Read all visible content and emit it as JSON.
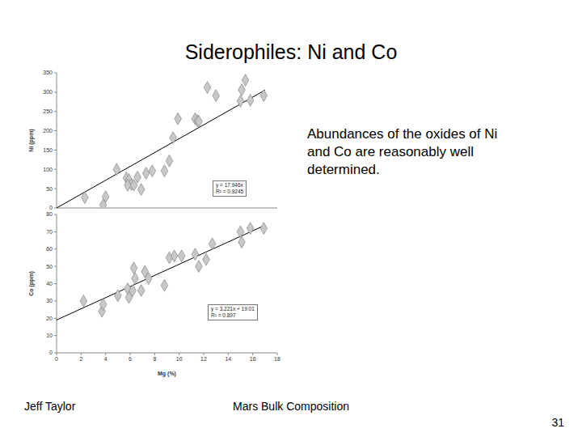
{
  "slide": {
    "title": "Siderophiles: Ni and Co",
    "text": "Abundances of the oxides of Ni and Co are reasonably well determined.",
    "footer_left": "Jeff Taylor",
    "footer_center": "Mars Bulk Composition",
    "page_number": 31
  },
  "chart_data": [
    {
      "type": "scatter",
      "y_label": "Ni (ppm)",
      "xlim": [
        0,
        18
      ],
      "xticks": [
        0,
        2,
        4,
        6,
        8,
        10,
        12,
        14,
        16,
        18
      ],
      "ylim": [
        0,
        350
      ],
      "yticks": [
        0,
        50,
        100,
        150,
        200,
        250,
        300,
        350
      ],
      "tick_labels": "y",
      "grid": false,
      "color": "#c8c8c8",
      "marker": "diamond",
      "x": [
        2.3,
        4.0,
        3.8,
        4.9,
        5.7,
        5.9,
        6.1,
        5.8,
        6.3,
        6.6,
        6.9,
        7.3,
        7.8,
        8.8,
        9.2,
        9.5,
        9.9,
        11.3,
        11.5,
        11.6,
        12.3,
        13.0,
        15.0,
        15.1,
        15.4,
        15.8,
        16.9
      ],
      "values": [
        27,
        29,
        8,
        100,
        78,
        73,
        61,
        59,
        59,
        80,
        48,
        90,
        96,
        96,
        122,
        182,
        231,
        231,
        226,
        224,
        312,
        291,
        277,
        306,
        331,
        279,
        291
      ],
      "trendline": {
        "x": [
          0,
          17
        ],
        "values": [
          0,
          305.1
        ],
        "label": [
          "y = 17.946x",
          "R² = 0.9245"
        ]
      }
    },
    {
      "type": "scatter",
      "x_label": "Mg (%)",
      "y_label": "Co (ppm)",
      "xlim": [
        0,
        18
      ],
      "xticks": [
        0,
        2,
        4,
        6,
        8,
        10,
        12,
        14,
        16,
        18
      ],
      "ylim": [
        0,
        80
      ],
      "yticks": [
        0,
        10,
        20,
        30,
        40,
        50,
        60,
        70,
        80
      ],
      "grid": false,
      "color": "#c8c8c8",
      "marker": "diamond",
      "x": [
        2.2,
        3.7,
        3.8,
        5.0,
        5.8,
        5.9,
        6.2,
        6.3,
        6.4,
        6.9,
        7.2,
        7.5,
        8.8,
        9.2,
        9.6,
        10.2,
        11.3,
        11.6,
        12.2,
        12.7,
        15.0,
        15.1,
        15.8,
        16.9
      ],
      "values": [
        30,
        24,
        28,
        33,
        37,
        32,
        36,
        49,
        43,
        36,
        47,
        43,
        39,
        55,
        56,
        56,
        57,
        50,
        54,
        63,
        70,
        64,
        72,
        72
      ],
      "trendline": {
        "x": [
          0,
          17
        ],
        "values": [
          19.01,
          73.77
        ],
        "label": [
          "y = 3.221x + 19.01",
          "R² = 0.897"
        ]
      }
    }
  ]
}
